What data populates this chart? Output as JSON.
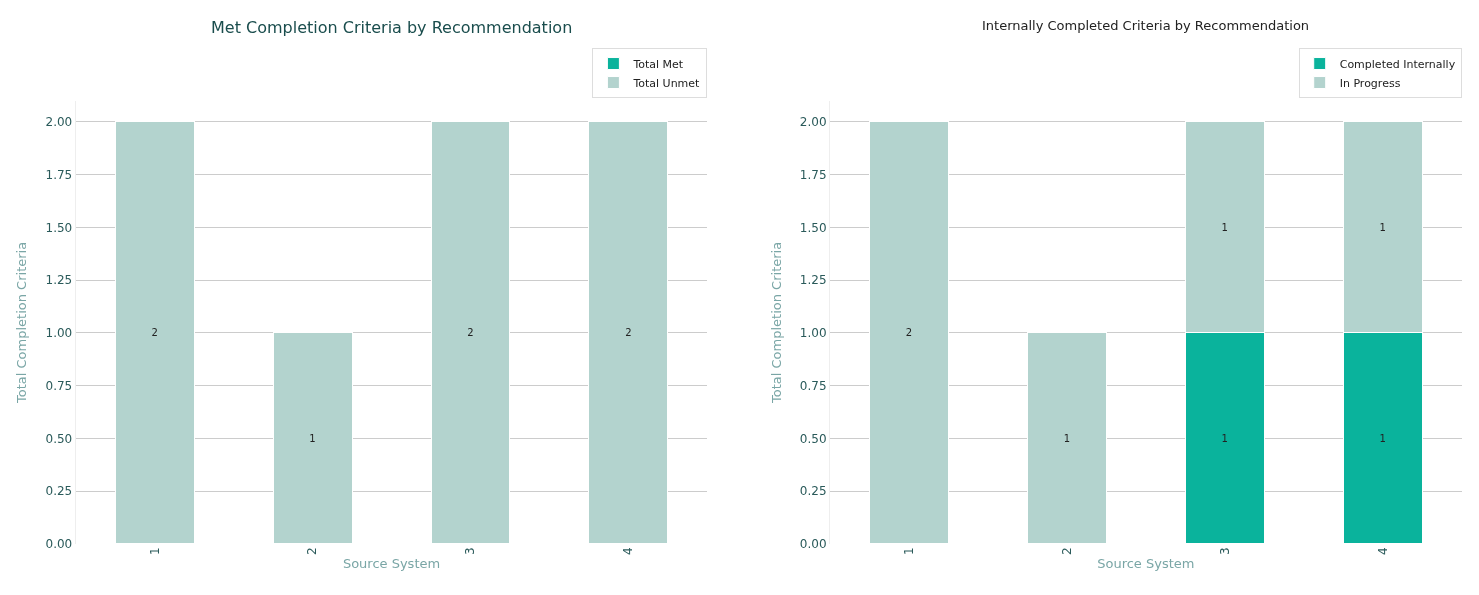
{
  "chart_data": [
    {
      "type": "bar",
      "title": "Met Completion Criteria by Recommendation",
      "xlabel": "Source System",
      "ylabel": "Total Completion Criteria",
      "categories": [
        "1",
        "2",
        "3",
        "4"
      ],
      "stacked": true,
      "ylim": [
        0,
        2.1
      ],
      "yticks": [
        {
          "value": 0,
          "label": "0.00"
        },
        {
          "value": 0.25,
          "label": "0.25"
        },
        {
          "value": 0.5,
          "label": "0.50"
        },
        {
          "value": 0.75,
          "label": "0.75"
        },
        {
          "value": 1,
          "label": "1.00"
        },
        {
          "value": 1.25,
          "label": "1.25"
        },
        {
          "value": 1.5,
          "label": "1.50"
        },
        {
          "value": 1.75,
          "label": "1.75"
        },
        {
          "value": 2,
          "label": "2.00"
        }
      ],
      "grid": "y",
      "legend": "top right",
      "series": [
        {
          "name": "Total Met",
          "color": "#0ab39c",
          "values": [
            0,
            0,
            0,
            0
          ],
          "value_labels": [
            null,
            null,
            null,
            null
          ]
        },
        {
          "name": "Total Unmet",
          "color": "#b3d3ce",
          "values": [
            2,
            1,
            2,
            2
          ],
          "value_labels": [
            "2",
            "1",
            "2",
            "2"
          ]
        }
      ]
    },
    {
      "type": "bar",
      "title": "Internally Completed Criteria by Recommendation",
      "xlabel": "Source System",
      "ylabel": "Total Completion Criteria",
      "categories": [
        "1",
        "2",
        "3",
        "4"
      ],
      "stacked": true,
      "ylim": [
        0,
        2.1
      ],
      "yticks": [
        {
          "value": 0,
          "label": "0.00"
        },
        {
          "value": 0.25,
          "label": "0.25"
        },
        {
          "value": 0.5,
          "label": "0.50"
        },
        {
          "value": 0.75,
          "label": "0.75"
        },
        {
          "value": 1,
          "label": "1.00"
        },
        {
          "value": 1.25,
          "label": "1.25"
        },
        {
          "value": 1.5,
          "label": "1.50"
        },
        {
          "value": 1.75,
          "label": "1.75"
        },
        {
          "value": 2,
          "label": "2.00"
        }
      ],
      "grid": "y",
      "legend": "top right",
      "series": [
        {
          "name": "Completed Internally",
          "color": "#0ab39c",
          "values": [
            0,
            0,
            1,
            1
          ],
          "value_labels": [
            null,
            null,
            "1",
            "1"
          ]
        },
        {
          "name": "In Progress",
          "color": "#b3d3ce",
          "values": [
            2,
            1,
            1,
            1
          ],
          "value_labels": [
            "2",
            "1",
            "1",
            "1"
          ]
        }
      ]
    }
  ]
}
